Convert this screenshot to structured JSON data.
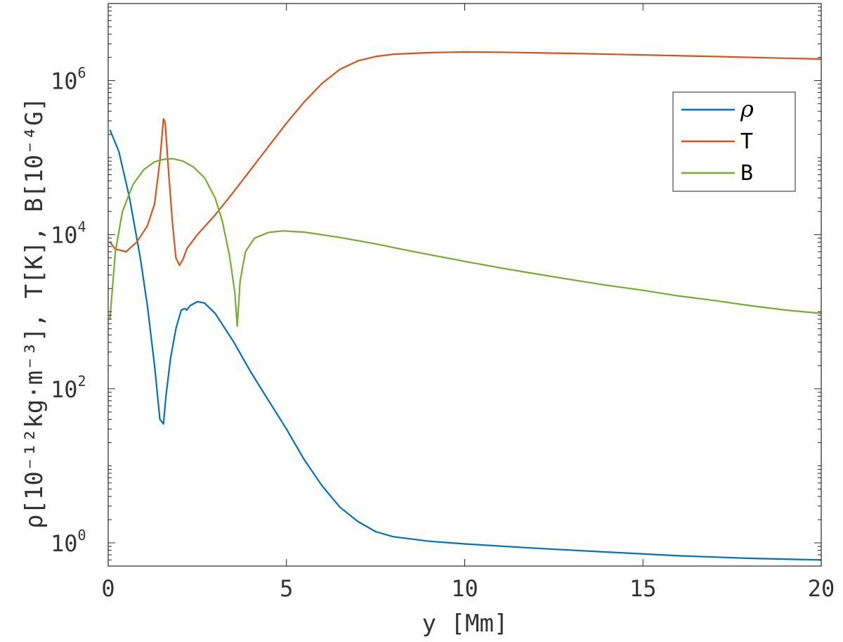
{
  "chart_data": {
    "type": "line",
    "xlabel": "y [Mm]",
    "ylabel": "ρ[10⁻¹²kg·m⁻³], T[K], B[10⁻⁴G]",
    "xlim": [
      0,
      20
    ],
    "ylim": [
      0.5,
      10000000
    ],
    "yscale": "log",
    "grid": false,
    "legend_position": "top-right",
    "x_ticks": [
      0,
      5,
      10,
      15,
      20
    ],
    "y_ticks": [
      {
        "value": 1,
        "base": "10",
        "exp": "0"
      },
      {
        "value": 100,
        "base": "10",
        "exp": "2"
      },
      {
        "value": 10000,
        "base": "10",
        "exp": "4"
      },
      {
        "value": 1000000,
        "base": "10",
        "exp": "6"
      }
    ],
    "legend_labels": {
      "rho": "ρ",
      "T": "T",
      "B": "B"
    },
    "series": [
      {
        "key": "rho",
        "name": "ρ",
        "color": "#0072BD",
        "points": [
          [
            0.05,
            230000
          ],
          [
            0.3,
            120000
          ],
          [
            0.6,
            30000
          ],
          [
            0.9,
            5000
          ],
          [
            1.1,
            1200
          ],
          [
            1.3,
            200
          ],
          [
            1.45,
            40
          ],
          [
            1.55,
            35
          ],
          [
            1.62,
            80
          ],
          [
            1.75,
            250
          ],
          [
            1.9,
            600
          ],
          [
            2.05,
            1050
          ],
          [
            2.15,
            1100
          ],
          [
            2.2,
            1050
          ],
          [
            2.3,
            1200
          ],
          [
            2.5,
            1350
          ],
          [
            2.7,
            1300
          ],
          [
            3.0,
            950
          ],
          [
            3.5,
            420
          ],
          [
            4.0,
            165
          ],
          [
            4.5,
            70
          ],
          [
            5.0,
            30
          ],
          [
            5.5,
            12
          ],
          [
            6.0,
            5.5
          ],
          [
            6.5,
            2.9
          ],
          [
            7.0,
            1.9
          ],
          [
            7.5,
            1.4
          ],
          [
            8.0,
            1.2
          ],
          [
            9.0,
            1.05
          ],
          [
            10.0,
            0.97
          ],
          [
            12.0,
            0.85
          ],
          [
            14.0,
            0.76
          ],
          [
            16.0,
            0.68
          ],
          [
            18.0,
            0.63
          ],
          [
            20.0,
            0.6
          ]
        ]
      },
      {
        "key": "T",
        "name": "T",
        "color": "#D95319",
        "points": [
          [
            0.05,
            8000
          ],
          [
            0.2,
            6500
          ],
          [
            0.5,
            6000
          ],
          [
            0.8,
            8000
          ],
          [
            1.1,
            13000
          ],
          [
            1.3,
            25000
          ],
          [
            1.45,
            90000
          ],
          [
            1.55,
            320000
          ],
          [
            1.6,
            280000
          ],
          [
            1.7,
            60000
          ],
          [
            1.8,
            15000
          ],
          [
            1.9,
            5000
          ],
          [
            2.0,
            4000
          ],
          [
            2.1,
            4800
          ],
          [
            2.2,
            6500
          ],
          [
            2.5,
            10000
          ],
          [
            3.0,
            18000
          ],
          [
            3.5,
            35000
          ],
          [
            4.0,
            70000
          ],
          [
            4.5,
            140000
          ],
          [
            5.0,
            280000
          ],
          [
            5.5,
            530000
          ],
          [
            6.0,
            920000
          ],
          [
            6.5,
            1400000
          ],
          [
            7.0,
            1800000
          ],
          [
            7.5,
            2050000
          ],
          [
            8.0,
            2200000
          ],
          [
            9.0,
            2300000
          ],
          [
            10.0,
            2350000
          ],
          [
            11.0,
            2330000
          ],
          [
            13.0,
            2250000
          ],
          [
            15.0,
            2150000
          ],
          [
            17.0,
            2050000
          ],
          [
            19.0,
            1950000
          ],
          [
            20.0,
            1900000
          ]
        ]
      },
      {
        "key": "B",
        "name": "B",
        "color": "#77AC30",
        "points": [
          [
            0.05,
            800
          ],
          [
            0.2,
            6000
          ],
          [
            0.4,
            20000
          ],
          [
            0.7,
            45000
          ],
          [
            1.0,
            70000
          ],
          [
            1.3,
            88000
          ],
          [
            1.55,
            95000
          ],
          [
            1.8,
            97000
          ],
          [
            2.1,
            90000
          ],
          [
            2.4,
            75000
          ],
          [
            2.7,
            55000
          ],
          [
            3.0,
            30000
          ],
          [
            3.2,
            15000
          ],
          [
            3.4,
            5500
          ],
          [
            3.55,
            1800
          ],
          [
            3.62,
            650
          ],
          [
            3.7,
            2500
          ],
          [
            3.85,
            6000
          ],
          [
            4.1,
            9000
          ],
          [
            4.5,
            10700
          ],
          [
            4.9,
            11200
          ],
          [
            5.5,
            10800
          ],
          [
            6.5,
            9200
          ],
          [
            7.5,
            7600
          ],
          [
            8.5,
            6100
          ],
          [
            10.0,
            4500
          ],
          [
            11.0,
            3700
          ],
          [
            12.0,
            3100
          ],
          [
            13.0,
            2600
          ],
          [
            14.0,
            2200
          ],
          [
            15.0,
            1900
          ],
          [
            16.0,
            1600
          ],
          [
            17.0,
            1400
          ],
          [
            18.0,
            1200
          ],
          [
            19.0,
            1050
          ],
          [
            20.0,
            950
          ]
        ]
      }
    ]
  }
}
